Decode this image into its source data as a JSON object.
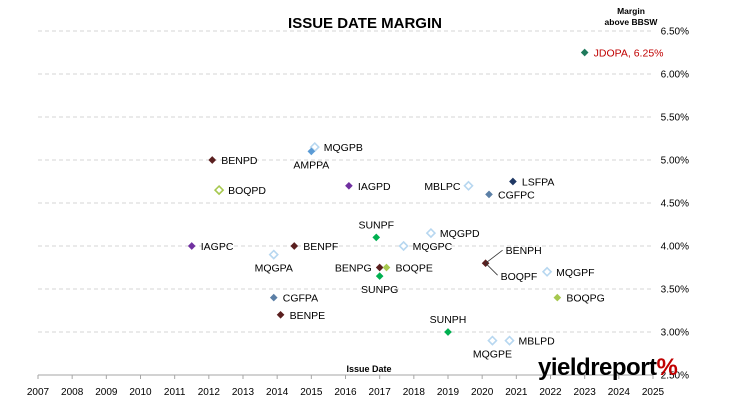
{
  "chart_data": {
    "type": "scatter",
    "title": "ISSUE DATE MARGIN",
    "xlabel": "Issue Date",
    "ylabel": "Margin above BBSW",
    "ylabel_lines": [
      "Margin",
      "above BBSW"
    ],
    "xlim": [
      2007,
      2025
    ],
    "ylim": [
      2.5,
      6.5
    ],
    "x_ticks": [
      "2007",
      "2008",
      "2009",
      "2010",
      "2011",
      "2012",
      "2013",
      "2014",
      "2015",
      "2016",
      "2017",
      "2018",
      "2019",
      "2020",
      "2021",
      "2022",
      "2023",
      "2024",
      "2025"
    ],
    "y_ticks": [
      "2.50%",
      "3.00%",
      "3.50%",
      "4.00%",
      "4.50%",
      "5.00%",
      "5.50%",
      "6.00%",
      "6.50%"
    ],
    "grid": "horizontal dashed",
    "logo": {
      "text_main": "yieldreport",
      "text_accent": "%"
    },
    "points": [
      {
        "label": "JDOPA, 6.25%",
        "x": 2023.0,
        "y": 6.25,
        "color": "#1f7a5c",
        "filled": true,
        "label_pos": "right",
        "label_color": "#c00000"
      },
      {
        "label": "MQGPB",
        "x": 2015.1,
        "y": 5.15,
        "color": "#b7d7f0",
        "filled": false,
        "label_pos": "right"
      },
      {
        "label": "AMPPA",
        "x": 2015.0,
        "y": 5.1,
        "color": "#5b9bd5",
        "filled": true,
        "label_pos": "below"
      },
      {
        "label": "BENPD",
        "x": 2012.1,
        "y": 5.0,
        "color": "#5a1f1f",
        "filled": true,
        "label_pos": "right"
      },
      {
        "label": "IAGPD",
        "x": 2016.1,
        "y": 4.7,
        "color": "#7030a0",
        "filled": true,
        "label_pos": "right"
      },
      {
        "label": "BOQPD",
        "x": 2012.3,
        "y": 4.65,
        "color": "#a6c84f",
        "filled": false,
        "label_pos": "right"
      },
      {
        "label": "MBLPC",
        "x": 2019.6,
        "y": 4.7,
        "color": "#b7d7f0",
        "filled": false,
        "label_pos": "left"
      },
      {
        "label": "LSFPA",
        "x": 2020.9,
        "y": 4.75,
        "color": "#1f3864",
        "filled": true,
        "label_pos": "right"
      },
      {
        "label": "CGFPC",
        "x": 2020.2,
        "y": 4.6,
        "color": "#5b7fa6",
        "filled": true,
        "label_pos": "right"
      },
      {
        "label": "SUNPF",
        "x": 2016.9,
        "y": 4.1,
        "color": "#00b050",
        "filled": true,
        "label_pos": "above"
      },
      {
        "label": "MQGPD",
        "x": 2018.5,
        "y": 4.15,
        "color": "#b7d7f0",
        "filled": false,
        "label_pos": "right"
      },
      {
        "label": "IAGPC",
        "x": 2011.5,
        "y": 4.0,
        "color": "#7030a0",
        "filled": true,
        "label_pos": "right"
      },
      {
        "label": "BENPF",
        "x": 2014.5,
        "y": 4.0,
        "color": "#5a1f1f",
        "filled": true,
        "label_pos": "right"
      },
      {
        "label": "MQGPC",
        "x": 2017.7,
        "y": 4.0,
        "color": "#b7d7f0",
        "filled": false,
        "label_pos": "right"
      },
      {
        "label": "MQGPA",
        "x": 2013.9,
        "y": 3.9,
        "color": "#b7d7f0",
        "filled": false,
        "label_pos": "below"
      },
      {
        "label": "BENPH",
        "x": 2020.1,
        "y": 3.8,
        "color": "#5a1f1f",
        "filled": true,
        "label_pos": "upper-right"
      },
      {
        "label": "BOQPF",
        "x": 2020.1,
        "y": 3.8,
        "color": "#5a1f1f",
        "filled": true,
        "label_pos": "lower-right",
        "hide_marker": true
      },
      {
        "label": "BENPG",
        "x": 2017.0,
        "y": 3.75,
        "color": "#5a1f1f",
        "filled": true,
        "label_pos": "left"
      },
      {
        "label": "BOQPE",
        "x": 2017.2,
        "y": 3.75,
        "color": "#a6c84f",
        "filled": true,
        "label_pos": "right"
      },
      {
        "label": "SUNPG",
        "x": 2017.0,
        "y": 3.65,
        "color": "#00b050",
        "filled": true,
        "label_pos": "below"
      },
      {
        "label": "MQGPF",
        "x": 2021.9,
        "y": 3.7,
        "color": "#b7d7f0",
        "filled": false,
        "label_pos": "right"
      },
      {
        "label": "BOQPG",
        "x": 2022.2,
        "y": 3.4,
        "color": "#a6c84f",
        "filled": true,
        "label_pos": "right"
      },
      {
        "label": "CGFPA",
        "x": 2013.9,
        "y": 3.4,
        "color": "#5b7fa6",
        "filled": true,
        "label_pos": "right"
      },
      {
        "label": "BENPE",
        "x": 2014.1,
        "y": 3.2,
        "color": "#5a1f1f",
        "filled": true,
        "label_pos": "right"
      },
      {
        "label": "SUNPH",
        "x": 2019.0,
        "y": 3.0,
        "color": "#00b050",
        "filled": true,
        "label_pos": "above"
      },
      {
        "label": "MBLPD",
        "x": 2020.8,
        "y": 2.9,
        "color": "#b7d7f0",
        "filled": false,
        "label_pos": "right"
      },
      {
        "label": "MQGPE",
        "x": 2020.3,
        "y": 2.9,
        "color": "#b7d7f0",
        "filled": false,
        "label_pos": "below"
      }
    ]
  }
}
